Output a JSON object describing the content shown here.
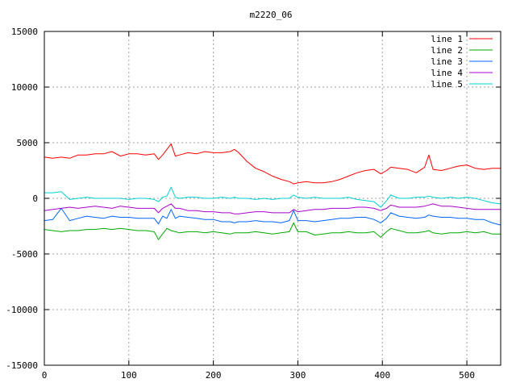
{
  "chart_data": {
    "type": "line",
    "title": "m2220_06",
    "xlabel": "",
    "ylabel": "",
    "xlim": [
      0,
      540
    ],
    "ylim": [
      -15000,
      15000
    ],
    "x_ticks": [
      0,
      100,
      200,
      300,
      400,
      500
    ],
    "y_ticks": [
      -15000,
      -10000,
      -5000,
      0,
      5000,
      10000,
      15000
    ],
    "grid": true,
    "legend_position": "top-right",
    "x": [
      0,
      10,
      20,
      30,
      40,
      50,
      60,
      70,
      80,
      90,
      100,
      110,
      120,
      130,
      135,
      140,
      145,
      150,
      155,
      160,
      170,
      180,
      190,
      200,
      210,
      220,
      225,
      230,
      240,
      250,
      260,
      270,
      280,
      290,
      295,
      300,
      310,
      320,
      330,
      340,
      350,
      360,
      370,
      380,
      390,
      398,
      405,
      410,
      420,
      430,
      440,
      450,
      455,
      460,
      470,
      480,
      490,
      500,
      510,
      520,
      530,
      540
    ],
    "series": [
      {
        "name": "line 1",
        "color": "#ff0000",
        "values": [
          3700,
          3600,
          3700,
          3600,
          3900,
          3900,
          4000,
          4000,
          4200,
          3800,
          4000,
          4000,
          3900,
          4000,
          3500,
          3900,
          4400,
          4900,
          3800,
          3900,
          4100,
          4000,
          4200,
          4100,
          4100,
          4200,
          4400,
          4100,
          3300,
          2700,
          2400,
          2000,
          1700,
          1500,
          1300,
          1400,
          1500,
          1400,
          1400,
          1500,
          1700,
          2000,
          2300,
          2500,
          2600,
          2200,
          2500,
          2800,
          2700,
          2600,
          2300,
          2800,
          3900,
          2600,
          2500,
          2700,
          2900,
          3000,
          2700,
          2600,
          2700,
          2700
        ]
      },
      {
        "name": "line 2",
        "color": "#00aa00",
        "values": [
          -2800,
          -2900,
          -3000,
          -2900,
          -2900,
          -2800,
          -2800,
          -2700,
          -2800,
          -2700,
          -2800,
          -2900,
          -2900,
          -3000,
          -3700,
          -3200,
          -2700,
          -2900,
          -3000,
          -3100,
          -3000,
          -3000,
          -3100,
          -3000,
          -3100,
          -3200,
          -3100,
          -3100,
          -3100,
          -3000,
          -3100,
          -3200,
          -3100,
          -3000,
          -2200,
          -3000,
          -3000,
          -3300,
          -3200,
          -3100,
          -3100,
          -3000,
          -3100,
          -3100,
          -3000,
          -3500,
          -3000,
          -2700,
          -2900,
          -3100,
          -3100,
          -3000,
          -2900,
          -3100,
          -3200,
          -3100,
          -3100,
          -3000,
          -3100,
          -3000,
          -3200,
          -3200
        ]
      },
      {
        "name": "line 3",
        "color": "#0066ff",
        "values": [
          -2000,
          -1900,
          -900,
          -2000,
          -1800,
          -1600,
          -1700,
          -1800,
          -1600,
          -1700,
          -1700,
          -1800,
          -1800,
          -1800,
          -2300,
          -1600,
          -1800,
          -1000,
          -1800,
          -1600,
          -1700,
          -1800,
          -1900,
          -1900,
          -2100,
          -2100,
          -2200,
          -2100,
          -2100,
          -2000,
          -2100,
          -2100,
          -2200,
          -2000,
          -1100,
          -2000,
          -2000,
          -2100,
          -2000,
          -1900,
          -1800,
          -1800,
          -1700,
          -1700,
          -1900,
          -2200,
          -1800,
          -1300,
          -1600,
          -1700,
          -1800,
          -1700,
          -1500,
          -1600,
          -1700,
          -1700,
          -1800,
          -1800,
          -1900,
          -1900,
          -2200,
          -2400
        ]
      },
      {
        "name": "line 4",
        "color": "#aa00cc",
        "values": [
          -1100,
          -1000,
          -900,
          -800,
          -900,
          -800,
          -700,
          -800,
          -900,
          -700,
          -800,
          -900,
          -900,
          -900,
          -1300,
          -900,
          -700,
          -500,
          -900,
          -900,
          -1100,
          -1100,
          -1200,
          -1200,
          -1300,
          -1300,
          -1400,
          -1400,
          -1300,
          -1200,
          -1200,
          -1300,
          -1300,
          -1300,
          -1000,
          -1200,
          -1100,
          -1000,
          -1000,
          -900,
          -900,
          -900,
          -800,
          -800,
          -900,
          -1100,
          -900,
          -600,
          -800,
          -800,
          -800,
          -700,
          -600,
          -500,
          -700,
          -700,
          -800,
          -900,
          -1000,
          -1000,
          -1000,
          -1000
        ]
      },
      {
        "name": "line 5",
        "color": "#00d0d0",
        "values": [
          500,
          500,
          600,
          -100,
          0,
          100,
          0,
          0,
          0,
          0,
          -100,
          0,
          0,
          -100,
          -300,
          100,
          200,
          1000,
          100,
          0,
          100,
          100,
          0,
          0,
          100,
          0,
          100,
          0,
          0,
          -100,
          0,
          -100,
          0,
          0,
          300,
          100,
          0,
          100,
          0,
          0,
          0,
          100,
          -100,
          -200,
          -300,
          -800,
          -200,
          300,
          0,
          0,
          100,
          100,
          200,
          100,
          0,
          100,
          0,
          100,
          0,
          -200,
          -400,
          -500
        ]
      }
    ]
  }
}
